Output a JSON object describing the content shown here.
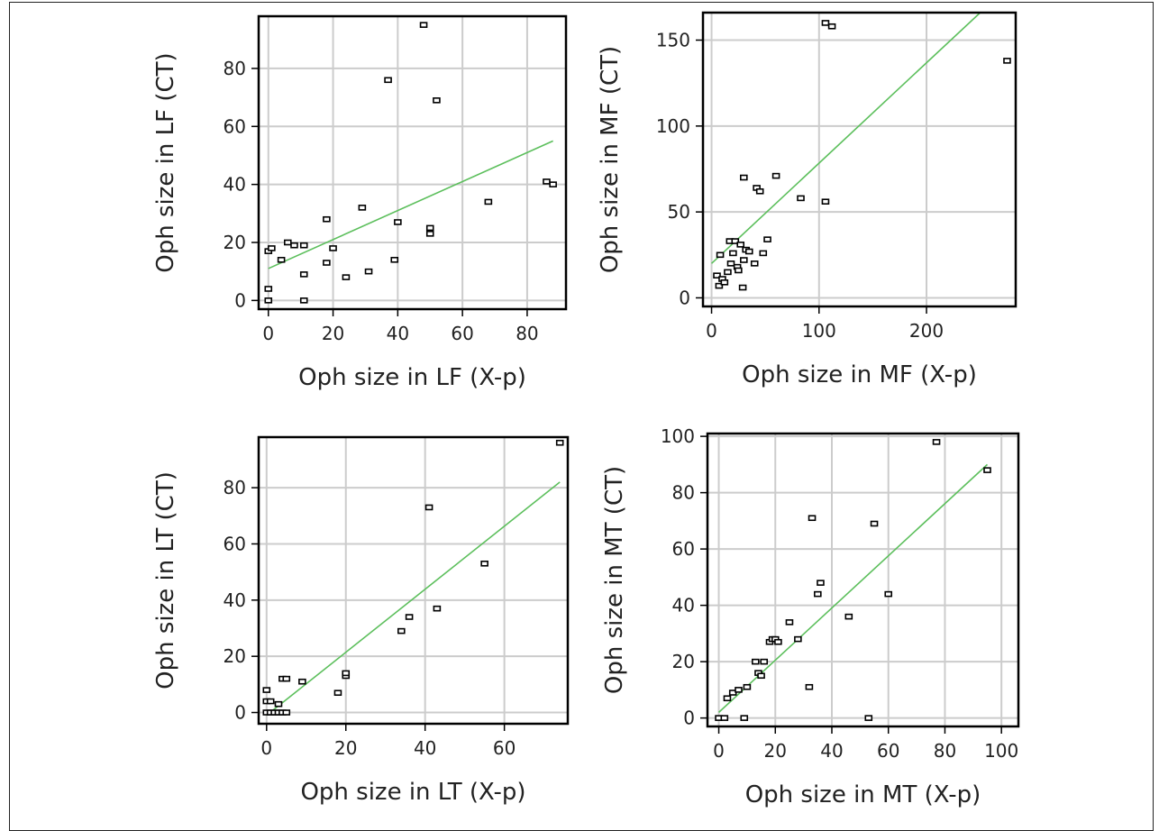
{
  "chart_data": [
    {
      "type": "scatter",
      "xlabel": "Oph size in LF (X-p)",
      "ylabel": "Oph size in LF (CT)",
      "xticks": [
        0,
        20,
        40,
        60,
        80
      ],
      "yticks": [
        0,
        20,
        40,
        60,
        80
      ],
      "xlim": [
        -3,
        92
      ],
      "ylim": [
        -3,
        98
      ],
      "grid": true,
      "points": [
        [
          0,
          17
        ],
        [
          1,
          18
        ],
        [
          0,
          4
        ],
        [
          0,
          0
        ],
        [
          4,
          14
        ],
        [
          6,
          20
        ],
        [
          8,
          19
        ],
        [
          11,
          19
        ],
        [
          11,
          9
        ],
        [
          11,
          0
        ],
        [
          18,
          28
        ],
        [
          18,
          13
        ],
        [
          20,
          18
        ],
        [
          24,
          8
        ],
        [
          29,
          32
        ],
        [
          31,
          10
        ],
        [
          37,
          76
        ],
        [
          39,
          14
        ],
        [
          40,
          27
        ],
        [
          48,
          95
        ],
        [
          50,
          25
        ],
        [
          50,
          23
        ],
        [
          52,
          69
        ],
        [
          68,
          34
        ],
        [
          86,
          41
        ],
        [
          88,
          40
        ]
      ],
      "fit": [
        [
          0,
          11
        ],
        [
          88,
          55
        ]
      ],
      "point_color": "#000000",
      "fit_color": "#5cbf5c"
    },
    {
      "type": "scatter",
      "xlabel": "Oph size in MF (X-p)",
      "ylabel": "Oph size in MF (CT)",
      "xticks": [
        0,
        100,
        200
      ],
      "yticks": [
        0,
        50,
        100,
        150
      ],
      "xlim": [
        -8,
        283
      ],
      "ylim": [
        -5,
        166
      ],
      "grid": true,
      "points": [
        [
          5,
          13
        ],
        [
          7,
          7
        ],
        [
          8,
          25
        ],
        [
          10,
          11
        ],
        [
          12,
          9
        ],
        [
          15,
          15
        ],
        [
          17,
          33
        ],
        [
          18,
          20
        ],
        [
          20,
          26
        ],
        [
          22,
          33
        ],
        [
          24,
          18
        ],
        [
          25,
          16
        ],
        [
          27,
          31
        ],
        [
          29,
          6
        ],
        [
          30,
          70
        ],
        [
          30,
          22
        ],
        [
          32,
          28
        ],
        [
          35,
          27
        ],
        [
          40,
          20
        ],
        [
          42,
          64
        ],
        [
          45,
          62
        ],
        [
          48,
          26
        ],
        [
          52,
          34
        ],
        [
          60,
          71
        ],
        [
          83,
          58
        ],
        [
          106,
          160
        ],
        [
          106,
          56
        ],
        [
          112,
          158
        ],
        [
          275,
          138
        ]
      ],
      "fit": [
        [
          0,
          20
        ],
        [
          250,
          166
        ]
      ],
      "point_color": "#000000",
      "fit_color": "#5cbf5c"
    },
    {
      "type": "scatter",
      "xlabel": "Oph size in LT (X-p)",
      "ylabel": "Oph size in LT (CT)",
      "xticks": [
        0,
        20,
        40,
        60
      ],
      "yticks": [
        0,
        20,
        40,
        60,
        80
      ],
      "xlim": [
        -2,
        76
      ],
      "ylim": [
        -4,
        98
      ],
      "grid": true,
      "points": [
        [
          0,
          8
        ],
        [
          0,
          4
        ],
        [
          0,
          0
        ],
        [
          1,
          4
        ],
        [
          1,
          0
        ],
        [
          2,
          0
        ],
        [
          3,
          0
        ],
        [
          3,
          3
        ],
        [
          4,
          12
        ],
        [
          4,
          0
        ],
        [
          5,
          12
        ],
        [
          5,
          0
        ],
        [
          9,
          11
        ],
        [
          18,
          7
        ],
        [
          20,
          13
        ],
        [
          20,
          14
        ],
        [
          34,
          29
        ],
        [
          36,
          34
        ],
        [
          41,
          73
        ],
        [
          43,
          37
        ],
        [
          55,
          53
        ],
        [
          74,
          96
        ]
      ],
      "fit": [
        [
          0,
          -1
        ],
        [
          74,
          82
        ]
      ],
      "point_color": "#000000",
      "fit_color": "#5cbf5c"
    },
    {
      "type": "scatter",
      "xlabel": "Oph size in MT (X-p)",
      "ylabel": "Oph size in MT (CT)",
      "xticks": [
        0,
        20,
        40,
        60,
        80,
        100
      ],
      "yticks": [
        0,
        20,
        40,
        60,
        80,
        100
      ],
      "xlim": [
        -4,
        106
      ],
      "ylim": [
        -3,
        101
      ],
      "grid": true,
      "points": [
        [
          0,
          0
        ],
        [
          2,
          0
        ],
        [
          3,
          7
        ],
        [
          5,
          9
        ],
        [
          7,
          10
        ],
        [
          9,
          0
        ],
        [
          10,
          11
        ],
        [
          13,
          20
        ],
        [
          14,
          16
        ],
        [
          15,
          15
        ],
        [
          16,
          20
        ],
        [
          18,
          27
        ],
        [
          19,
          28
        ],
        [
          20,
          28
        ],
        [
          21,
          27
        ],
        [
          25,
          34
        ],
        [
          28,
          28
        ],
        [
          32,
          11
        ],
        [
          33,
          71
        ],
        [
          35,
          44
        ],
        [
          36,
          48
        ],
        [
          46,
          36
        ],
        [
          53,
          0
        ],
        [
          55,
          69
        ],
        [
          60,
          44
        ],
        [
          77,
          98
        ],
        [
          95,
          88
        ]
      ],
      "fit": [
        [
          0,
          2
        ],
        [
          95,
          90
        ]
      ],
      "point_color": "#000000",
      "fit_color": "#5cbf5c"
    }
  ]
}
